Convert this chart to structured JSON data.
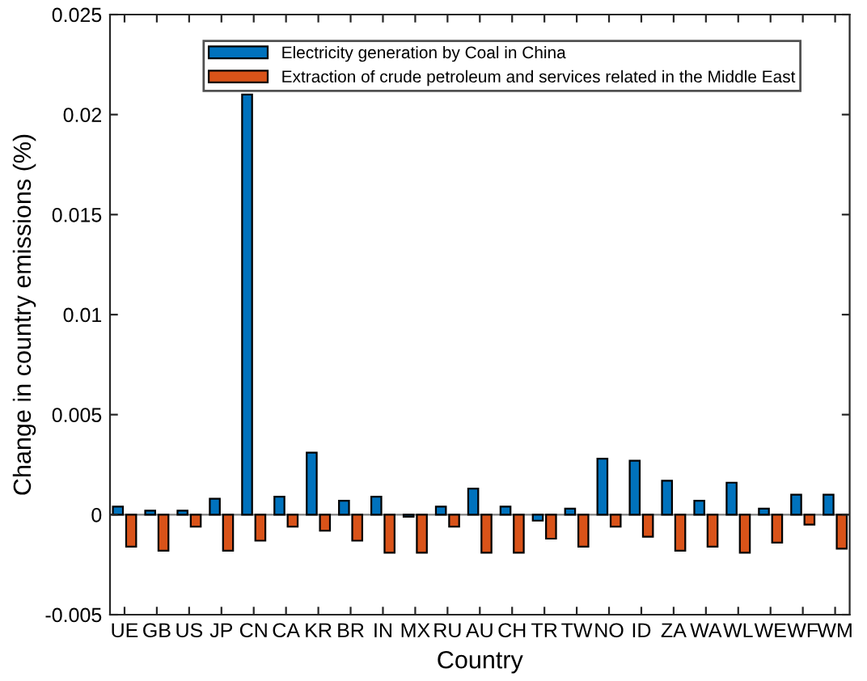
{
  "chart_data": {
    "type": "bar",
    "xlabel": "Country",
    "ylabel": "Change in country emissions (%)",
    "categories": [
      "UE",
      "GB",
      "US",
      "JP",
      "CN",
      "CA",
      "KR",
      "BR",
      "IN",
      "MX",
      "RU",
      "AU",
      "CH",
      "TR",
      "TW",
      "NO",
      "ID",
      "ZA",
      "WA",
      "WL",
      "WE",
      "WF",
      "WM"
    ],
    "series": [
      {
        "name": "Electricity generation by Coal in China",
        "color": "#0072bd",
        "values": [
          0.0004,
          0.0002,
          0.0002,
          0.0008,
          0.021,
          0.0009,
          0.0031,
          0.0007,
          0.0009,
          -0.0001,
          0.0004,
          0.0013,
          0.0004,
          -0.0003,
          0.0003,
          0.0028,
          0.0027,
          0.0017,
          0.0007,
          0.0016,
          0.0003,
          0.001,
          0.001
        ]
      },
      {
        "name": "Extraction of crude petroleum and services related in the Middle East",
        "color": "#d95319",
        "values": [
          -0.0016,
          -0.0018,
          -0.0006,
          -0.0018,
          -0.0013,
          -0.0006,
          -0.0008,
          -0.0013,
          -0.0019,
          -0.0019,
          -0.0006,
          -0.0019,
          -0.0019,
          -0.0012,
          -0.0016,
          -0.0006,
          -0.0011,
          -0.0018,
          -0.0016,
          -0.0019,
          -0.0014,
          -0.0005,
          -0.0017
        ]
      }
    ],
    "ylim": [
      -0.005,
      0.025
    ],
    "yticks": [
      -0.005,
      0,
      0.005,
      0.01,
      0.015,
      0.02,
      0.025
    ],
    "ref_lines": [
      {
        "axis": "y",
        "value": 0,
        "color": "#808080"
      }
    ],
    "legend": "top"
  }
}
